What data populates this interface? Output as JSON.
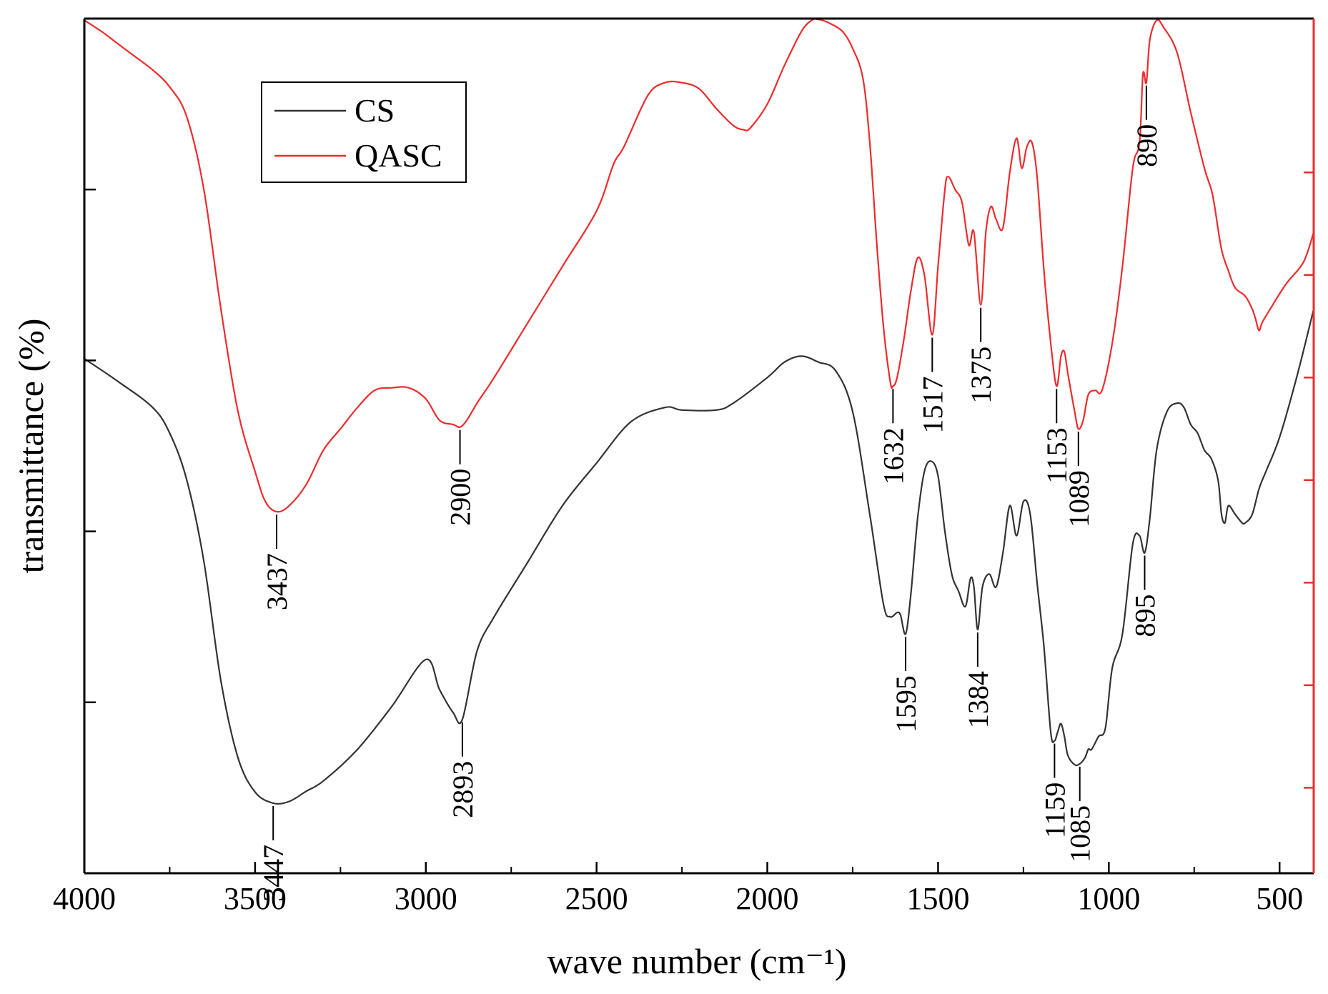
{
  "chart_data": {
    "type": "line",
    "title": "",
    "xlabel": "wave number (cm⁻¹)",
    "ylabel": "transmittance (%)",
    "xlim": [
      4000,
      400
    ],
    "ylim": [
      0,
      100
    ],
    "x_ticks": [
      4000,
      3500,
      3000,
      2500,
      2000,
      1500,
      1000,
      500
    ],
    "x_tick_labels": [
      "4000",
      "3500",
      "3000",
      "2500",
      "2000",
      "1500",
      "1000",
      "500"
    ],
    "legend": {
      "position": "top-left",
      "entries": [
        "CS",
        "QASC"
      ]
    },
    "colors": {
      "CS": "#333333",
      "QASC": "#ef2b2d",
      "right_axis": "#ef2b2d",
      "frame": "#000000"
    },
    "series": [
      {
        "name": "CS",
        "x": [
          4000,
          3900,
          3800,
          3750,
          3700,
          3650,
          3600,
          3550,
          3500,
          3447,
          3400,
          3350,
          3300,
          3200,
          3100,
          3000,
          2960,
          2920,
          2893,
          2850,
          2800,
          2700,
          2600,
          2500,
          2400,
          2300,
          2250,
          2150,
          2100,
          2000,
          1950,
          1900,
          1850,
          1800,
          1750,
          1700,
          1660,
          1640,
          1620,
          1610,
          1595,
          1580,
          1560,
          1540,
          1520,
          1500,
          1480,
          1460,
          1440,
          1420,
          1405,
          1395,
          1384,
          1370,
          1350,
          1330,
          1310,
          1290,
          1270,
          1250,
          1230,
          1210,
          1190,
          1170,
          1159,
          1150,
          1140,
          1130,
          1120,
          1100,
          1085,
          1070,
          1060,
          1050,
          1030,
          1010,
          990,
          960,
          930,
          910,
          895,
          880,
          860,
          830,
          800,
          780,
          760,
          740,
          720,
          700,
          680,
          670,
          660,
          650,
          630,
          610,
          600,
          580,
          560,
          540,
          500,
          450,
          400
        ],
        "y": [
          60.2,
          57.5,
          54.5,
          51.5,
          46,
          36.5,
          22.5,
          13.5,
          9.5,
          8.2,
          8.4,
          9.6,
          10.8,
          14.5,
          19.5,
          25,
          21.5,
          18.8,
          18,
          26,
          30,
          36.5,
          43,
          48,
          52.8,
          54.5,
          54.2,
          54.2,
          55,
          58,
          59.8,
          60.5,
          59.8,
          58.8,
          54,
          42,
          31.5,
          30,
          30.5,
          30.2,
          28,
          32.5,
          41.5,
          47,
          48.2,
          46.5,
          40,
          35,
          33,
          31.2,
          34.5,
          33.5,
          28.5,
          33.5,
          35,
          33.5,
          37.5,
          43,
          39.5,
          43.5,
          42,
          34,
          26.5,
          16.5,
          15.5,
          16.5,
          17.5,
          16,
          13.8,
          12.7,
          12.8,
          13.5,
          14.5,
          14.5,
          16,
          17,
          24,
          28,
          38.5,
          39.5,
          37.5,
          41.5,
          49.5,
          54,
          55,
          54.5,
          52.5,
          51.5,
          49.5,
          48.5,
          46,
          42,
          41,
          43,
          42,
          41,
          41,
          42,
          45,
          47,
          51,
          58,
          66
        ]
      },
      {
        "name": "QASC",
        "x": [
          4000,
          3950,
          3900,
          3850,
          3800,
          3750,
          3700,
          3650,
          3600,
          3550,
          3500,
          3470,
          3437,
          3400,
          3350,
          3300,
          3250,
          3200,
          3150,
          3100,
          3050,
          3000,
          2960,
          2920,
          2900,
          2880,
          2850,
          2800,
          2700,
          2600,
          2500,
          2450,
          2420,
          2350,
          2300,
          2250,
          2200,
          2150,
          2100,
          2070,
          2050,
          2000,
          1950,
          1900,
          1870,
          1850,
          1820,
          1780,
          1750,
          1720,
          1700,
          1680,
          1660,
          1640,
          1632,
          1620,
          1600,
          1580,
          1560,
          1540,
          1517,
          1500,
          1480,
          1470,
          1450,
          1430,
          1410,
          1395,
          1375,
          1360,
          1345,
          1330,
          1310,
          1290,
          1270,
          1255,
          1240,
          1225,
          1210,
          1190,
          1170,
          1153,
          1140,
          1130,
          1120,
          1100,
          1089,
          1075,
          1060,
          1040,
          1020,
          990,
          960,
          930,
          910,
          900,
          890,
          880,
          860,
          840,
          800,
          760,
          720,
          700,
          690,
          670,
          650,
          630,
          600,
          580,
          570,
          560,
          550,
          520,
          480,
          430,
          400
        ],
        "y": [
          99.8,
          98.5,
          97,
          95.5,
          94,
          92,
          88.5,
          80,
          66,
          54,
          47,
          43.5,
          42.3,
          43,
          45.5,
          49.5,
          52,
          54.5,
          56.5,
          56.8,
          56.8,
          55.5,
          53,
          52.5,
          52.2,
          53,
          55,
          58,
          64.5,
          71,
          77.5,
          83,
          85,
          91,
          92.5,
          92.5,
          91.8,
          89.5,
          87.5,
          87,
          87.2,
          90,
          94.5,
          98.5,
          99.8,
          99.9,
          99.5,
          98.5,
          96.5,
          93,
          85.5,
          74,
          64,
          57.5,
          57,
          58,
          62.5,
          68,
          72,
          70,
          63,
          71,
          80,
          81.5,
          80,
          78.5,
          73.5,
          75,
          66.5,
          75,
          78,
          76.5,
          75.5,
          82,
          86,
          82.5,
          85,
          85.5,
          81.5,
          70.5,
          62,
          57,
          60.5,
          61,
          58.5,
          54,
          52,
          53,
          56,
          56.5,
          56.5,
          62,
          71,
          82.5,
          85.5,
          93.5,
          92.5,
          97.5,
          99.8,
          99,
          96,
          89,
          82.5,
          80,
          78,
          73,
          70.5,
          68.5,
          67.5,
          66,
          64.8,
          63.5,
          64.5,
          66.5,
          69,
          71.5,
          75
        ]
      }
    ],
    "annotations": [
      {
        "series": "QASC",
        "x": 3437,
        "label": "3437"
      },
      {
        "series": "QASC",
        "x": 2900,
        "label": "2900"
      },
      {
        "series": "QASC",
        "x": 1632,
        "label": "1632"
      },
      {
        "series": "QASC",
        "x": 1517,
        "label": "1517"
      },
      {
        "series": "QASC",
        "x": 1375,
        "label": "1375"
      },
      {
        "series": "QASC",
        "x": 1153,
        "label": "1153"
      },
      {
        "series": "QASC",
        "x": 1089,
        "label": "1089"
      },
      {
        "series": "QASC",
        "x": 890,
        "label": "890"
      },
      {
        "series": "CS",
        "x": 3447,
        "label": "3447"
      },
      {
        "series": "CS",
        "x": 2893,
        "label": "2893"
      },
      {
        "series": "CS",
        "x": 1595,
        "label": "1595"
      },
      {
        "series": "CS",
        "x": 1384,
        "label": "1384"
      },
      {
        "series": "CS",
        "x": 1159,
        "label": "1159"
      },
      {
        "series": "CS",
        "x": 1085,
        "label": "1085"
      },
      {
        "series": "CS",
        "x": 895,
        "label": "895"
      }
    ]
  }
}
